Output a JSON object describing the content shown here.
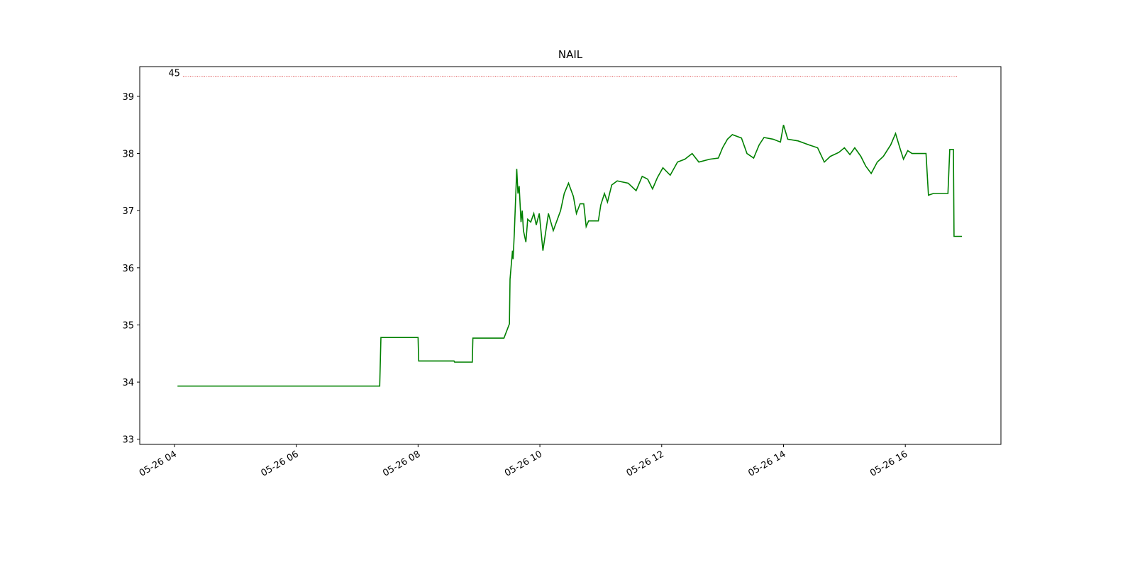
{
  "chart_data": {
    "type": "line",
    "title": "NAIL",
    "x": [
      4.05,
      7.37,
      7.39,
      8.0,
      8.01,
      8.59,
      8.6,
      8.89,
      8.9,
      9.41,
      9.5,
      9.51,
      9.55,
      9.56,
      9.58,
      9.62,
      9.64,
      9.66,
      9.69,
      9.71,
      9.73,
      9.77,
      9.8,
      9.85,
      9.9,
      9.94,
      9.99,
      10.05,
      10.14,
      10.22,
      10.34,
      10.4,
      10.47,
      10.55,
      10.6,
      10.66,
      10.72,
      10.76,
      10.8,
      10.96,
      11.0,
      11.06,
      11.11,
      11.18,
      11.27,
      11.45,
      11.58,
      11.68,
      11.77,
      11.85,
      11.93,
      12.02,
      12.14,
      12.26,
      12.38,
      12.5,
      12.61,
      12.79,
      12.93,
      13.0,
      13.08,
      13.16,
      13.31,
      13.4,
      13.51,
      13.6,
      13.68,
      13.83,
      13.95,
      14.0,
      14.07,
      14.24,
      14.42,
      14.56,
      14.67,
      14.77,
      14.91,
      15.0,
      15.09,
      15.17,
      15.27,
      15.35,
      15.44,
      15.54,
      15.64,
      15.76,
      15.84,
      15.91,
      15.97,
      16.04,
      16.11,
      16.34,
      16.38,
      16.46,
      16.7,
      16.73,
      16.79,
      16.8,
      16.93
    ],
    "series": [
      {
        "color": "#008000",
        "values": [
          33.93,
          33.93,
          34.78,
          34.78,
          34.37,
          34.37,
          34.35,
          34.35,
          34.77,
          34.77,
          35.02,
          35.8,
          36.3,
          36.15,
          36.6,
          37.73,
          37.3,
          37.43,
          36.8,
          37.0,
          36.65,
          36.45,
          36.85,
          36.8,
          36.95,
          36.75,
          36.95,
          36.3,
          36.95,
          36.65,
          37.0,
          37.3,
          37.48,
          37.25,
          36.95,
          37.12,
          37.12,
          36.72,
          36.82,
          36.82,
          37.1,
          37.3,
          37.15,
          37.45,
          37.52,
          37.48,
          37.35,
          37.6,
          37.55,
          37.38,
          37.58,
          37.75,
          37.62,
          37.85,
          37.9,
          38.0,
          37.85,
          37.9,
          37.92,
          38.1,
          38.25,
          38.33,
          38.27,
          38.0,
          37.92,
          38.15,
          38.28,
          38.25,
          38.2,
          38.5,
          38.25,
          38.22,
          38.15,
          38.1,
          37.85,
          37.95,
          38.02,
          38.1,
          37.98,
          38.1,
          37.95,
          37.78,
          37.65,
          37.85,
          37.95,
          38.15,
          38.35,
          38.1,
          37.9,
          38.05,
          38.0,
          38.0,
          37.27,
          37.3,
          37.3,
          38.07,
          38.07,
          36.55,
          36.55
        ]
      }
    ],
    "hline": {
      "value": 39.35,
      "xmin": 4.14,
      "xmax": 16.86,
      "label": "45",
      "color": "#d62728"
    },
    "xlim": [
      3.43,
      17.57
    ],
    "xticks": [
      {
        "value": 4,
        "label": "05-26 04"
      },
      {
        "value": 6,
        "label": "05-26 06"
      },
      {
        "value": 8,
        "label": "05-26 08"
      },
      {
        "value": 10,
        "label": "05-26 10"
      },
      {
        "value": 12,
        "label": "05-26 12"
      },
      {
        "value": 14,
        "label": "05-26 14"
      },
      {
        "value": 16,
        "label": "05-26 16"
      }
    ],
    "ylim": [
      32.91,
      39.52
    ],
    "yticks": [
      33,
      34,
      35,
      36,
      37,
      38,
      39
    ]
  }
}
